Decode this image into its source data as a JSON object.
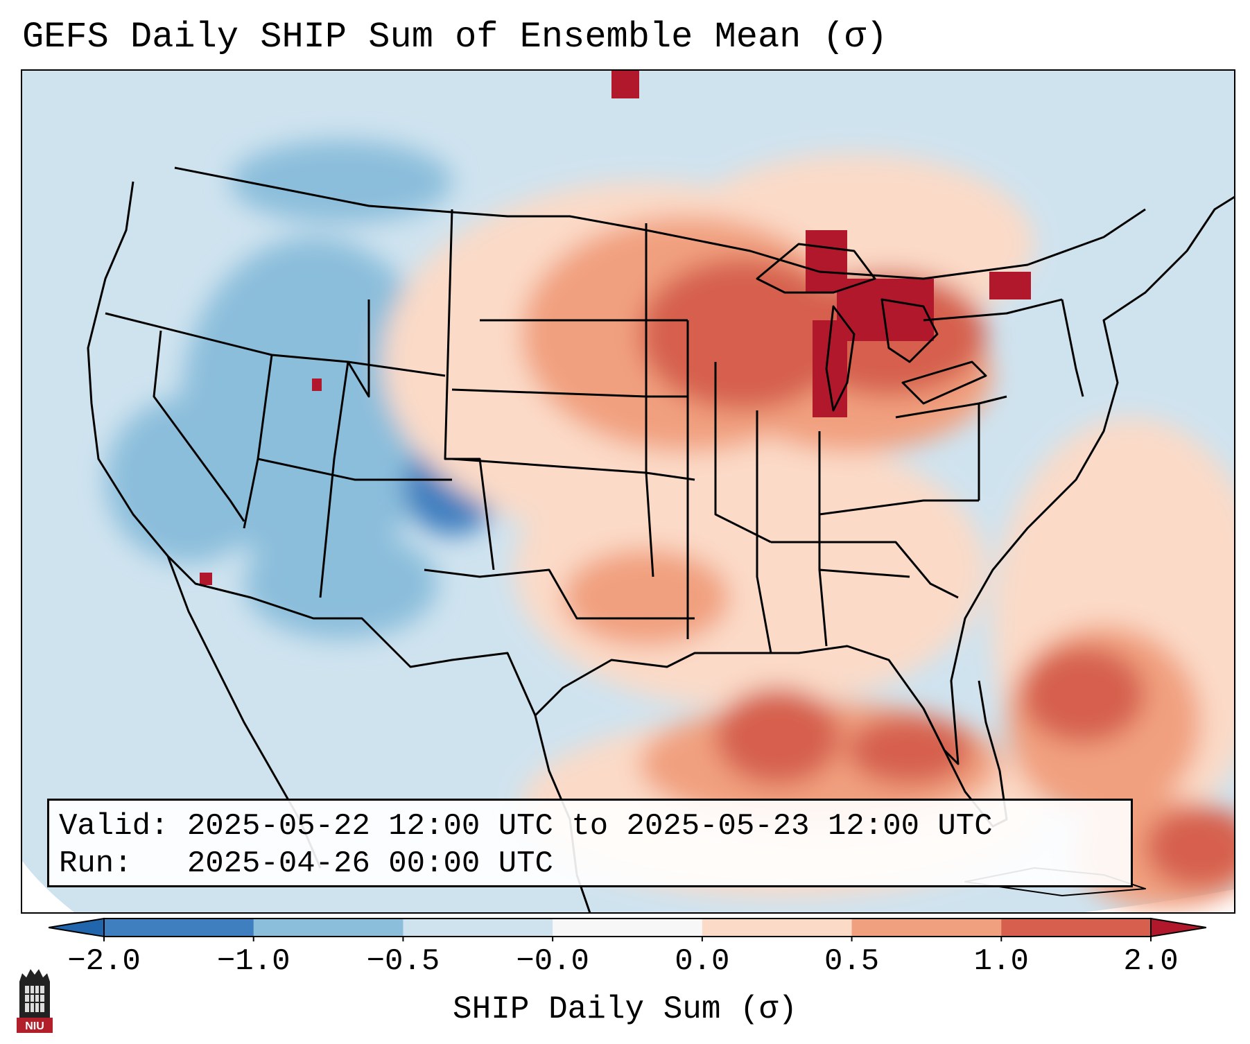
{
  "title": "GEFS Daily SHIP Sum of Ensemble Mean (σ)",
  "info": {
    "valid_line": "Valid: 2025-05-22 12:00 UTC to 2025-05-23 12:00 UTC",
    "run_line": "Run:   2025-04-26 00:00 UTC"
  },
  "colorbar": {
    "label": "SHIP Daily Sum (σ)",
    "ticks": [
      "−2.0",
      "−1.0",
      "−0.5",
      "−0.0",
      "0.0",
      "0.5",
      "1.0",
      "2.0"
    ],
    "colors": [
      "#3f7fbf",
      "#8bbedb",
      "#cfe3ef",
      "#f7f7f7",
      "#fbdac7",
      "#f1a07f",
      "#d6604d",
      "#b2182b"
    ],
    "extend_low_color": "#2166ac",
    "extend_high_color": "#b2182b"
  },
  "map": {
    "projection": "lambert-conformal",
    "region": "CONUS",
    "background_color": "#cfe3ef",
    "coastline_color": "#000000"
  },
  "logo": {
    "text": "NIU",
    "color": "#b21f2a",
    "icon": "niu-tower-icon"
  }
}
